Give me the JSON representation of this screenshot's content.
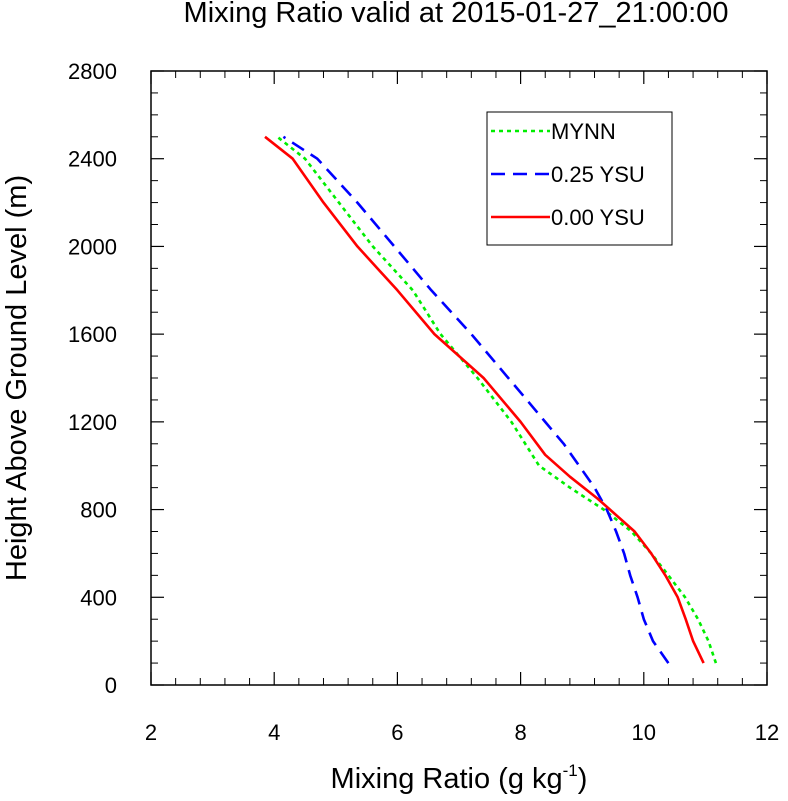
{
  "chart_data": {
    "type": "line",
    "title": "Mixing Ratio valid at 2015-01-27_21:00:00",
    "xlabel": "Mixing Ratio (g kg",
    "xlabel_sup": "-1",
    "xlabel_end": ")",
    "ylabel": "Height Above Ground Level (m)",
    "xlim": [
      2,
      12
    ],
    "ylim": [
      0,
      2800
    ],
    "xticks": [
      2,
      4,
      6,
      8,
      10,
      12
    ],
    "yticks": [
      0,
      400,
      800,
      1200,
      1600,
      2000,
      2400,
      2800
    ],
    "x_minor_step": 0.4,
    "y_minor_step": 100,
    "legend_position": "top-right",
    "series": [
      {
        "name": "MYNN",
        "color": "#00ee00",
        "dash": "dotted",
        "points": [
          [
            11.17,
            100
          ],
          [
            11.05,
            200
          ],
          [
            10.88,
            300
          ],
          [
            10.67,
            400
          ],
          [
            10.4,
            500
          ],
          [
            10.12,
            600
          ],
          [
            9.8,
            700
          ],
          [
            9.35,
            800
          ],
          [
            8.8,
            900
          ],
          [
            8.3,
            1000
          ],
          [
            7.85,
            1200
          ],
          [
            7.3,
            1400
          ],
          [
            6.7,
            1600
          ],
          [
            6.25,
            1800
          ],
          [
            5.6,
            2000
          ],
          [
            5.05,
            2200
          ],
          [
            4.5,
            2400
          ],
          [
            4.05,
            2500
          ]
        ]
      },
      {
        "name": "0.25 YSU",
        "color": "#0000ff",
        "dash": "dashed",
        "points": [
          [
            10.4,
            100
          ],
          [
            10.15,
            200
          ],
          [
            10.0,
            300
          ],
          [
            9.9,
            400
          ],
          [
            9.78,
            500
          ],
          [
            9.68,
            600
          ],
          [
            9.55,
            700
          ],
          [
            9.4,
            800
          ],
          [
            9.2,
            900
          ],
          [
            8.95,
            1000
          ],
          [
            8.7,
            1100
          ],
          [
            8.4,
            1200
          ],
          [
            8.1,
            1300
          ],
          [
            7.8,
            1400
          ],
          [
            7.2,
            1600
          ],
          [
            6.55,
            1800
          ],
          [
            5.95,
            2000
          ],
          [
            5.35,
            2200
          ],
          [
            4.7,
            2400
          ],
          [
            4.15,
            2500
          ]
        ]
      },
      {
        "name": "0.00 YSU",
        "color": "#ff0000",
        "dash": "solid",
        "points": [
          [
            10.97,
            100
          ],
          [
            10.8,
            200
          ],
          [
            10.68,
            300
          ],
          [
            10.55,
            400
          ],
          [
            10.35,
            500
          ],
          [
            10.12,
            600
          ],
          [
            9.85,
            700
          ],
          [
            9.25,
            850
          ],
          [
            8.8,
            950
          ],
          [
            8.4,
            1050
          ],
          [
            8.0,
            1200
          ],
          [
            7.4,
            1400
          ],
          [
            6.6,
            1600
          ],
          [
            6.0,
            1800
          ],
          [
            5.35,
            2000
          ],
          [
            4.8,
            2200
          ],
          [
            4.3,
            2400
          ],
          [
            3.85,
            2500
          ]
        ]
      }
    ]
  }
}
